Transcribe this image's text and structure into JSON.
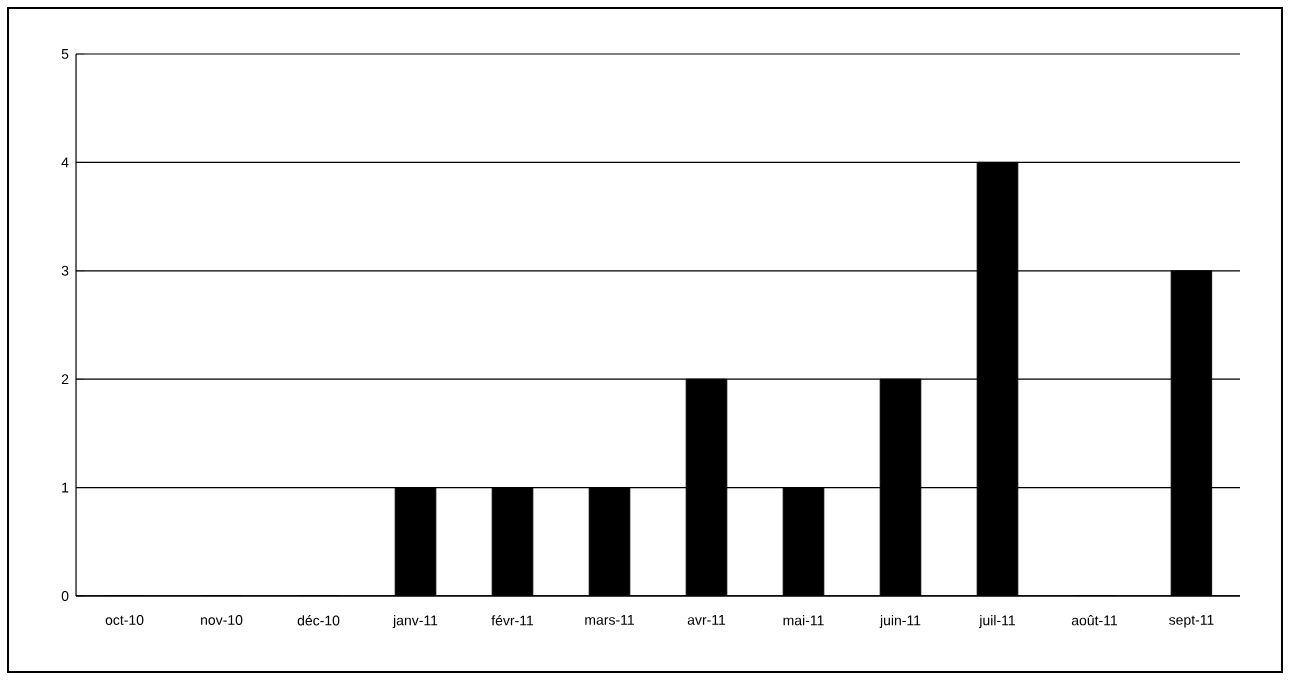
{
  "chart_data": {
    "type": "bar",
    "categories": [
      "oct-10",
      "nov-10",
      "déc-10",
      "janv-11",
      "févr-11",
      "mars-11",
      "avr-11",
      "mai-11",
      "juin-11",
      "juil-11",
      "août-11",
      "sept-11"
    ],
    "values": [
      0,
      0,
      0,
      1,
      1,
      1,
      2,
      1,
      2,
      4,
      0,
      3
    ],
    "color": "#000000",
    "ylim": [
      0,
      5
    ],
    "yticks": [
      0,
      1,
      2,
      3,
      4,
      5
    ],
    "grid": "y"
  }
}
